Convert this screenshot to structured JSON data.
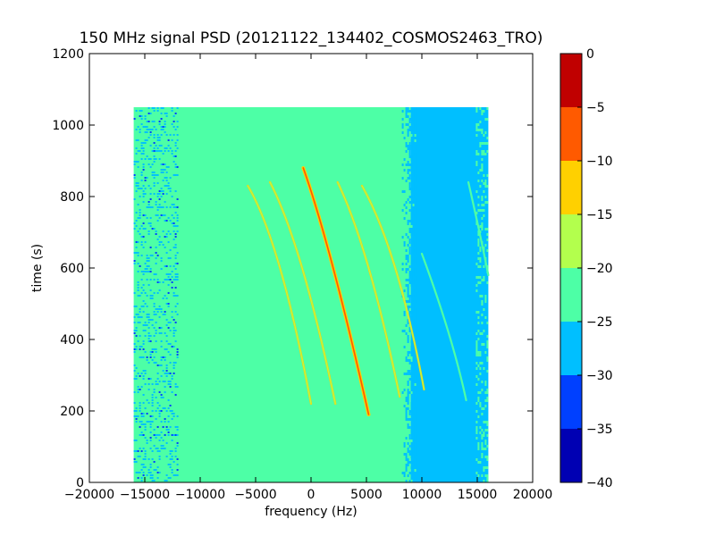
{
  "chart_data": {
    "type": "heatmap",
    "title": "150 MHz signal PSD (20121122_134402_COSMOS2463_TRO)",
    "xlabel": "frequency (Hz)",
    "ylabel": "time (s)",
    "xlim": [
      -20000,
      20000
    ],
    "ylim": [
      0,
      1200
    ],
    "xticks": [
      -20000,
      -15000,
      -10000,
      -5000,
      0,
      5000,
      10000,
      15000,
      20000
    ],
    "yticks": [
      0,
      200,
      400,
      600,
      800,
      1000,
      1200
    ],
    "data_extent": {
      "freq_range": [
        -16000,
        16000
      ],
      "time_range": [
        0,
        1050
      ]
    },
    "background_regions": [
      {
        "freq_range": [
          -16000,
          -12000
        ],
        "level": "-25 to -20 (noisy)"
      },
      {
        "freq_range": [
          -12000,
          9000
        ],
        "level": "-25 to -20"
      },
      {
        "freq_range": [
          9000,
          16000
        ],
        "level": "-30 to -25"
      }
    ],
    "doppler_traces": [
      {
        "name_visible": false,
        "strength": "strong",
        "points": [
          [
            -700,
            880
          ],
          [
            2000,
            600
          ],
          [
            5200,
            190
          ]
        ]
      },
      {
        "name_visible": false,
        "strength": "medium",
        "points": [
          [
            -5700,
            830
          ],
          [
            -2800,
            600
          ],
          [
            0,
            220
          ]
        ]
      },
      {
        "name_visible": false,
        "strength": "medium",
        "points": [
          [
            -3700,
            840
          ],
          [
            -800,
            600
          ],
          [
            2200,
            220
          ]
        ]
      },
      {
        "name_visible": false,
        "strength": "medium",
        "points": [
          [
            2400,
            840
          ],
          [
            5200,
            600
          ],
          [
            8000,
            240
          ]
        ]
      },
      {
        "name_visible": false,
        "strength": "medium",
        "points": [
          [
            4600,
            830
          ],
          [
            7600,
            600
          ],
          [
            10200,
            260
          ]
        ]
      },
      {
        "name_visible": false,
        "strength": "weak",
        "points": [
          [
            10000,
            640
          ],
          [
            12400,
            420
          ],
          [
            14000,
            230
          ]
        ]
      },
      {
        "name_visible": false,
        "strength": "weak",
        "points": [
          [
            14200,
            840
          ],
          [
            15200,
            700
          ],
          [
            16000,
            580
          ]
        ]
      }
    ],
    "colorbar": {
      "range": [
        -40,
        0
      ],
      "ticks": [
        "0",
        "−5",
        "−10",
        "−15",
        "−20",
        "−25",
        "−30",
        "−35",
        "−40"
      ],
      "levels": [
        {
          "range": [
            -40,
            -35
          ],
          "color": "#0000b3"
        },
        {
          "range": [
            -35,
            -30
          ],
          "color": "#0040ff"
        },
        {
          "range": [
            -30,
            -25
          ],
          "color": "#00bfff"
        },
        {
          "range": [
            -25,
            -20
          ],
          "color": "#4dffa6"
        },
        {
          "range": [
            -20,
            -15
          ],
          "color": "#b3ff4d"
        },
        {
          "range": [
            -15,
            -10
          ],
          "color": "#ffd000"
        },
        {
          "range": [
            -10,
            -5
          ],
          "color": "#ff5a00"
        },
        {
          "range": [
            -5,
            0
          ],
          "color": "#c00000"
        }
      ]
    },
    "grid": false
  }
}
